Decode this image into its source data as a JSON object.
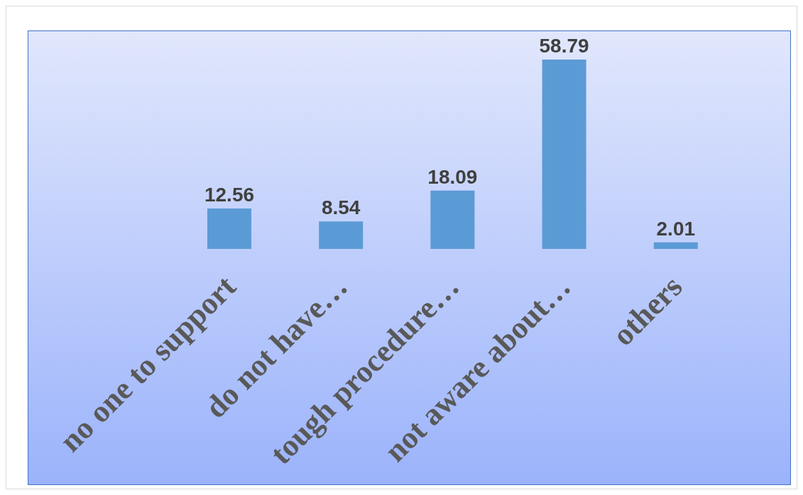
{
  "chart_data": {
    "type": "bar",
    "categories": [
      "no one to support",
      "do not have…",
      "tough procedure…",
      "not aware about…",
      "others"
    ],
    "values": [
      12.56,
      8.54,
      18.09,
      58.79,
      2.01
    ],
    "color": "#5b9bd5",
    "data_labels": true,
    "grid": false,
    "legend": false
  }
}
